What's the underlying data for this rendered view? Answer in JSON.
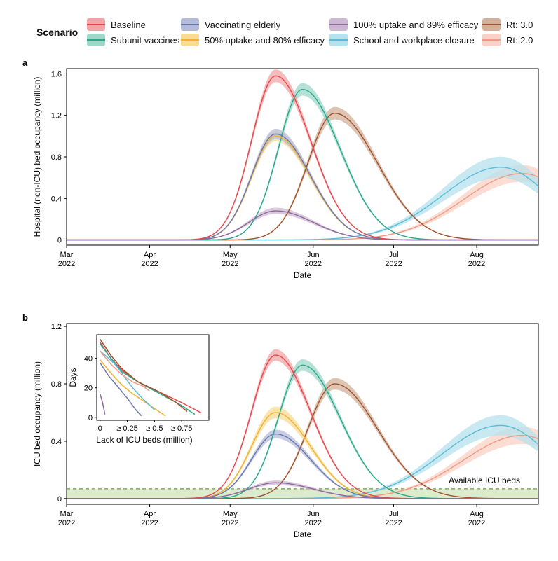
{
  "legend": {
    "title": "Scenario",
    "items": [
      {
        "label": "Baseline",
        "color": "#e8474c",
        "fill": "#f1a5a8"
      },
      {
        "label": "Subunit vaccines",
        "color": "#2aa88c",
        "fill": "#9fd7c8"
      },
      {
        "label": "Vaccinating elderly",
        "color": "#6b78ad",
        "fill": "#b5bcd9"
      },
      {
        "label": "50% uptake and 80% efficacy",
        "color": "#f3b12c",
        "fill": "#f8dc95"
      },
      {
        "label": "100% uptake and 89% efficacy",
        "color": "#8e6b9a",
        "fill": "#cdb8d3"
      },
      {
        "label": "School and workplace closure",
        "color": "#5bbcd6",
        "fill": "#b6e2ee"
      },
      {
        "label": "Rt: 3.0",
        "color": "#a0522d",
        "fill": "#d2b09a"
      },
      {
        "label": "Rt: 2.0",
        "color": "#f19a85",
        "fill": "#f9d1c6"
      }
    ]
  },
  "chart_data": [
    {
      "panel": "a",
      "type": "line",
      "title": "",
      "xlabel": "Date",
      "ylabel": "Hospital (non-ICU) bed occupancy (million)",
      "x_ticks": [
        {
          "line1": "Mar",
          "line2": "2022"
        },
        {
          "line1": "Apr",
          "line2": "2022"
        },
        {
          "line1": "May",
          "line2": "2022"
        },
        {
          "line1": "Jun",
          "line2": "2022"
        },
        {
          "line1": "Jul",
          "line2": "2022"
        },
        {
          "line1": "Aug",
          "line2": "2022"
        }
      ],
      "x_range_days": [
        0,
        176
      ],
      "ylim": [
        -0.05,
        1.65
      ],
      "y_ticks": [
        0,
        0.4,
        0.8,
        1.2,
        1.6
      ],
      "y_tick_labels": [
        "0",
        "0.4",
        "0.8",
        "1.2",
        "1.6"
      ],
      "series": [
        {
          "name": "Baseline",
          "peak_day": 78,
          "peak": 1.58,
          "rise": 9,
          "fall": 13,
          "band": 0.06
        },
        {
          "name": "Subunit vaccines",
          "peak_day": 88,
          "peak": 1.45,
          "rise": 9,
          "fall": 14,
          "band": 0.06
        },
        {
          "name": "Vaccinating elderly",
          "peak_day": 78,
          "peak": 1.02,
          "rise": 9,
          "fall": 13,
          "band": 0.05
        },
        {
          "name": "50% uptake and 80% efficacy",
          "peak_day": 78,
          "peak": 1.0,
          "rise": 9,
          "fall": 13,
          "band": 0.05
        },
        {
          "name": "100% uptake and 89% efficacy",
          "peak_day": 78,
          "peak": 0.28,
          "rise": 10,
          "fall": 14,
          "band": 0.03
        },
        {
          "name": "Rt: 3.0",
          "peak_day": 100,
          "peak": 1.22,
          "rise": 10,
          "fall": 16,
          "band": 0.06
        },
        {
          "name": "School and workplace closure",
          "peak_day": 162,
          "peak": 0.7,
          "rise": 22,
          "fall": 18,
          "band": 0.1
        },
        {
          "name": "Rt: 2.0",
          "peak_day": 170,
          "peak": 0.64,
          "rise": 22,
          "fall": 18,
          "band": 0.08
        }
      ]
    },
    {
      "panel": "b",
      "type": "line",
      "title": "",
      "xlabel": "Date",
      "ylabel": "ICU bed occupancy (million)",
      "x_ticks": [
        {
          "line1": "Mar",
          "line2": "2022"
        },
        {
          "line1": "Apr",
          "line2": "2022"
        },
        {
          "line1": "May",
          "line2": "2022"
        },
        {
          "line1": "Jun",
          "line2": "2022"
        },
        {
          "line1": "Jul",
          "line2": "2022"
        },
        {
          "line1": "Aug",
          "line2": "2022"
        }
      ],
      "x_range_days": [
        0,
        176
      ],
      "ylim": [
        -0.04,
        1.22
      ],
      "y_ticks": [
        0,
        0.4,
        0.8,
        1.2
      ],
      "y_tick_labels": [
        "0",
        "0.4",
        "0.8",
        "1.2"
      ],
      "available_icu_beds": 0.068,
      "annotation": "Available ICU beds",
      "series": [
        {
          "name": "Baseline",
          "peak_day": 78,
          "peak": 1.0,
          "rise": 9,
          "fall": 13,
          "band": 0.04
        },
        {
          "name": "Subunit vaccines",
          "peak_day": 88,
          "peak": 0.93,
          "rise": 9,
          "fall": 14,
          "band": 0.04
        },
        {
          "name": "Vaccinating elderly",
          "peak_day": 78,
          "peak": 0.45,
          "rise": 9,
          "fall": 13,
          "band": 0.03
        },
        {
          "name": "50% uptake and 80% efficacy",
          "peak_day": 78,
          "peak": 0.6,
          "rise": 9,
          "fall": 13,
          "band": 0.04
        },
        {
          "name": "100% uptake and 89% efficacy",
          "peak_day": 78,
          "peak": 0.11,
          "rise": 10,
          "fall": 14,
          "band": 0.015
        },
        {
          "name": "Rt: 3.0",
          "peak_day": 100,
          "peak": 0.8,
          "rise": 10,
          "fall": 16,
          "band": 0.04
        },
        {
          "name": "School and workplace closure",
          "peak_day": 162,
          "peak": 0.51,
          "rise": 22,
          "fall": 18,
          "band": 0.07
        },
        {
          "name": "Rt: 2.0",
          "peak_day": 170,
          "peak": 0.44,
          "rise": 22,
          "fall": 18,
          "band": 0.06
        }
      ],
      "inset": {
        "type": "line",
        "xlabel": "Lack of ICU beds (million)",
        "ylabel": "Days",
        "xlim": [
          -0.03,
          1.0
        ],
        "ylim": [
          -2,
          56
        ],
        "x_ticks": [
          0,
          0.25,
          0.5,
          0.75
        ],
        "x_tick_labels": [
          "0",
          "≥ 0.25",
          "≥ 0.5",
          "≥ 0.75"
        ],
        "y_ticks": [
          0,
          20,
          40
        ],
        "y_tick_labels": [
          "0",
          "20",
          "40"
        ],
        "series": [
          {
            "name": "Baseline",
            "points": [
              [
                0,
                51
              ],
              [
                0.1,
                40
              ],
              [
                0.2,
                32
              ],
              [
                0.35,
                24
              ],
              [
                0.55,
                17
              ],
              [
                0.75,
                10
              ],
              [
                0.93,
                3
              ]
            ]
          },
          {
            "name": "Subunit vaccines",
            "points": [
              [
                0,
                50
              ],
              [
                0.1,
                40
              ],
              [
                0.2,
                31
              ],
              [
                0.35,
                24
              ],
              [
                0.55,
                16
              ],
              [
                0.75,
                8
              ],
              [
                0.87,
                2
              ]
            ]
          },
          {
            "name": "Vaccinating elderly",
            "points": [
              [
                0,
                37
              ],
              [
                0.08,
                28
              ],
              [
                0.15,
                22
              ],
              [
                0.25,
                13
              ],
              [
                0.33,
                5
              ],
              [
                0.38,
                1
              ]
            ]
          },
          {
            "name": "50% uptake and 80% efficacy",
            "points": [
              [
                0,
                39
              ],
              [
                0.1,
                30
              ],
              [
                0.2,
                22
              ],
              [
                0.3,
                16
              ],
              [
                0.42,
                10
              ],
              [
                0.52,
                5
              ],
              [
                0.6,
                1
              ]
            ]
          },
          {
            "name": "100% uptake and 89% efficacy",
            "points": [
              [
                0,
                16
              ],
              [
                0.02,
                11
              ],
              [
                0.035,
                6
              ],
              [
                0.045,
                2
              ]
            ]
          },
          {
            "name": "School and workplace closure",
            "points": [
              [
                0,
                45
              ],
              [
                0.08,
                40
              ],
              [
                0.15,
                35
              ],
              [
                0.22,
                28
              ],
              [
                0.3,
                20
              ],
              [
                0.4,
                12
              ],
              [
                0.46,
                8
              ],
              [
                0.5,
                5
              ]
            ]
          },
          {
            "name": "Rt: 3.0",
            "points": [
              [
                0,
                53
              ],
              [
                0.1,
                42
              ],
              [
                0.2,
                33
              ],
              [
                0.35,
                24
              ],
              [
                0.55,
                17
              ],
              [
                0.7,
                10
              ],
              [
                0.8,
                4
              ]
            ]
          },
          {
            "name": "Rt: 2.0",
            "points": [
              [
                0,
                45
              ],
              [
                0.1,
                36
              ],
              [
                0.2,
                29
              ],
              [
                0.3,
                24
              ],
              [
                0.4,
                21
              ],
              [
                0.45,
                18
              ]
            ]
          }
        ]
      }
    }
  ]
}
